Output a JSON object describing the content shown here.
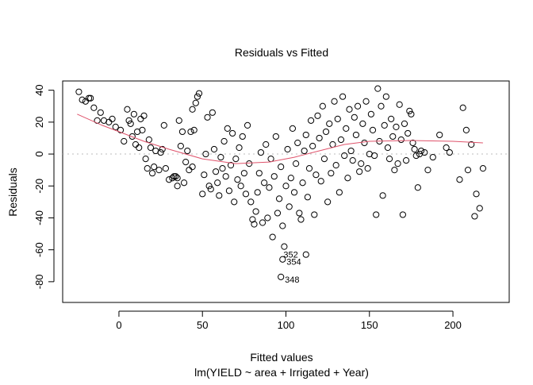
{
  "chart_data": {
    "type": "scatter",
    "title": "Residuals vs Fitted",
    "xlabel": "Fitted values",
    "subtitle": "lm(YIELD ~ area + Irrigated + Year)",
    "ylabel": "Residuals",
    "xlim": [
      -33.7,
      233.7
    ],
    "ylim": [
      -93,
      45.8
    ],
    "xticks": [
      0,
      50,
      100,
      150,
      200
    ],
    "yticks": [
      40,
      20,
      0,
      -20,
      -40,
      -60,
      -80
    ],
    "grid": false,
    "reference_line": 0,
    "colors": {
      "points": "#000000",
      "smooth": "#DF536B",
      "reference": "#bbbbbb"
    },
    "smooth": [
      [
        -25,
        25
      ],
      [
        -10,
        18
      ],
      [
        0,
        14
      ],
      [
        15,
        8
      ],
      [
        30,
        3
      ],
      [
        50,
        -3
      ],
      [
        70,
        -6
      ],
      [
        90,
        -5
      ],
      [
        105,
        -2
      ],
      [
        120,
        2
      ],
      [
        135,
        6
      ],
      [
        150,
        8
      ],
      [
        175,
        8.5
      ],
      [
        200,
        8
      ],
      [
        218,
        7
      ]
    ],
    "labeled_points": [
      {
        "x": 97,
        "y": -77,
        "label": "348"
      },
      {
        "x": 98,
        "y": -66,
        "label": "354"
      },
      {
        "x": 112,
        "y": -63,
        "label": "352"
      }
    ],
    "points": [
      [
        -24,
        39
      ],
      [
        -22,
        34
      ],
      [
        -20,
        33
      ],
      [
        -18,
        35
      ],
      [
        -17,
        35
      ],
      [
        -15,
        29
      ],
      [
        -13,
        21
      ],
      [
        -11,
        26
      ],
      [
        -9,
        21
      ],
      [
        -6,
        20
      ],
      [
        -4,
        22
      ],
      [
        -2,
        17
      ],
      [
        1,
        15
      ],
      [
        3,
        8
      ],
      [
        5,
        28
      ],
      [
        6,
        21
      ],
      [
        7,
        19
      ],
      [
        8,
        11
      ],
      [
        9,
        25
      ],
      [
        10,
        6
      ],
      [
        11,
        14
      ],
      [
        12,
        4
      ],
      [
        13,
        22
      ],
      [
        14,
        15
      ],
      [
        15,
        24
      ],
      [
        16,
        -3
      ],
      [
        17,
        -9
      ],
      [
        18,
        9
      ],
      [
        19,
        4
      ],
      [
        20,
        -12
      ],
      [
        21,
        -8
      ],
      [
        22,
        2
      ],
      [
        24,
        -10
      ],
      [
        25,
        1
      ],
      [
        26,
        3
      ],
      [
        27,
        18
      ],
      [
        28,
        -9
      ],
      [
        30,
        -16
      ],
      [
        32,
        -15
      ],
      [
        33,
        -14
      ],
      [
        34,
        -14
      ],
      [
        35,
        -15
      ],
      [
        36,
        21
      ],
      [
        38,
        14
      ],
      [
        40,
        -5
      ],
      [
        42,
        -10
      ],
      [
        44,
        -8
      ],
      [
        46,
        32
      ],
      [
        47,
        36
      ],
      [
        48,
        38
      ],
      [
        45,
        15
      ],
      [
        44,
        28
      ],
      [
        43,
        14
      ],
      [
        41,
        2
      ],
      [
        39,
        -18
      ],
      [
        37,
        5
      ],
      [
        35,
        -20
      ],
      [
        50,
        -25
      ],
      [
        51,
        -13
      ],
      [
        52,
        0
      ],
      [
        53,
        23
      ],
      [
        54,
        -20
      ],
      [
        55,
        -22
      ],
      [
        56,
        26
      ],
      [
        57,
        3
      ],
      [
        58,
        -11
      ],
      [
        59,
        -18
      ],
      [
        60,
        -26
      ],
      [
        61,
        -2
      ],
      [
        62,
        -9
      ],
      [
        63,
        8
      ],
      [
        64,
        -14
      ],
      [
        65,
        16
      ],
      [
        66,
        -23
      ],
      [
        67,
        -7
      ],
      [
        68,
        13
      ],
      [
        69,
        -30
      ],
      [
        70,
        -3
      ],
      [
        71,
        -16
      ],
      [
        72,
        4
      ],
      [
        73,
        -20
      ],
      [
        74,
        11
      ],
      [
        75,
        -12
      ],
      [
        76,
        -25
      ],
      [
        77,
        18
      ],
      [
        78,
        -6
      ],
      [
        79,
        -30
      ],
      [
        80,
        -41
      ],
      [
        81,
        -44
      ],
      [
        82,
        -36
      ],
      [
        83,
        -24
      ],
      [
        84,
        -12
      ],
      [
        85,
        1
      ],
      [
        86,
        -43
      ],
      [
        87,
        -18
      ],
      [
        88,
        6
      ],
      [
        89,
        -40
      ],
      [
        90,
        -21
      ],
      [
        91,
        -3
      ],
      [
        92,
        -52
      ],
      [
        93,
        -14
      ],
      [
        94,
        11
      ],
      [
        95,
        -37
      ],
      [
        96,
        -28
      ],
      [
        97,
        -8
      ],
      [
        98,
        -45
      ],
      [
        99,
        -58
      ],
      [
        100,
        -20
      ],
      [
        101,
        3
      ],
      [
        102,
        -33
      ],
      [
        103,
        -15
      ],
      [
        104,
        16
      ],
      [
        105,
        -24
      ],
      [
        106,
        -6
      ],
      [
        107,
        7
      ],
      [
        108,
        -37
      ],
      [
        109,
        -41
      ],
      [
        110,
        -18
      ],
      [
        111,
        2
      ],
      [
        112,
        12
      ],
      [
        113,
        -27
      ],
      [
        114,
        -9
      ],
      [
        115,
        21
      ],
      [
        116,
        5
      ],
      [
        117,
        -38
      ],
      [
        118,
        -13
      ],
      [
        119,
        24
      ],
      [
        120,
        10
      ],
      [
        121,
        -17
      ],
      [
        122,
        30
      ],
      [
        123,
        -3
      ],
      [
        124,
        14
      ],
      [
        125,
        -30
      ],
      [
        126,
        19
      ],
      [
        127,
        -12
      ],
      [
        128,
        6
      ],
      [
        129,
        33
      ],
      [
        130,
        -7
      ],
      [
        131,
        22
      ],
      [
        132,
        -24
      ],
      [
        133,
        9
      ],
      [
        134,
        36
      ],
      [
        135,
        -1
      ],
      [
        136,
        16
      ],
      [
        137,
        -15
      ],
      [
        138,
        28
      ],
      [
        139,
        2
      ],
      [
        140,
        -4
      ],
      [
        141,
        23
      ],
      [
        142,
        12
      ],
      [
        143,
        30
      ],
      [
        144,
        -11
      ],
      [
        145,
        -6
      ],
      [
        146,
        19
      ],
      [
        147,
        7
      ],
      [
        148,
        33
      ],
      [
        149,
        -9
      ],
      [
        150,
        0
      ],
      [
        151,
        25
      ],
      [
        152,
        15
      ],
      [
        153,
        -1
      ],
      [
        154,
        -38
      ],
      [
        155,
        41
      ],
      [
        156,
        8
      ],
      [
        157,
        30
      ],
      [
        158,
        -26
      ],
      [
        159,
        18
      ],
      [
        160,
        36
      ],
      [
        161,
        4
      ],
      [
        162,
        -3
      ],
      [
        163,
        22
      ],
      [
        164,
        11
      ],
      [
        165,
        -10
      ],
      [
        166,
        17
      ],
      [
        167,
        -6
      ],
      [
        168,
        31
      ],
      [
        169,
        9
      ],
      [
        170,
        -38
      ],
      [
        171,
        19
      ],
      [
        172,
        -4
      ],
      [
        173,
        13
      ],
      [
        174,
        27
      ],
      [
        175,
        25
      ],
      [
        176,
        7
      ],
      [
        177,
        3
      ],
      [
        178,
        -1
      ],
      [
        179,
        -21
      ],
      [
        180,
        0
      ],
      [
        181,
        2
      ],
      [
        183,
        1
      ],
      [
        185,
        -10
      ],
      [
        188,
        -2
      ],
      [
        192,
        12
      ],
      [
        196,
        4
      ],
      [
        198,
        1
      ],
      [
        204,
        -16
      ],
      [
        206,
        29
      ],
      [
        208,
        15
      ],
      [
        209,
        -10
      ],
      [
        211,
        6
      ],
      [
        213,
        -39
      ],
      [
        214,
        -25
      ],
      [
        216,
        -34
      ],
      [
        218,
        -9
      ]
    ]
  }
}
